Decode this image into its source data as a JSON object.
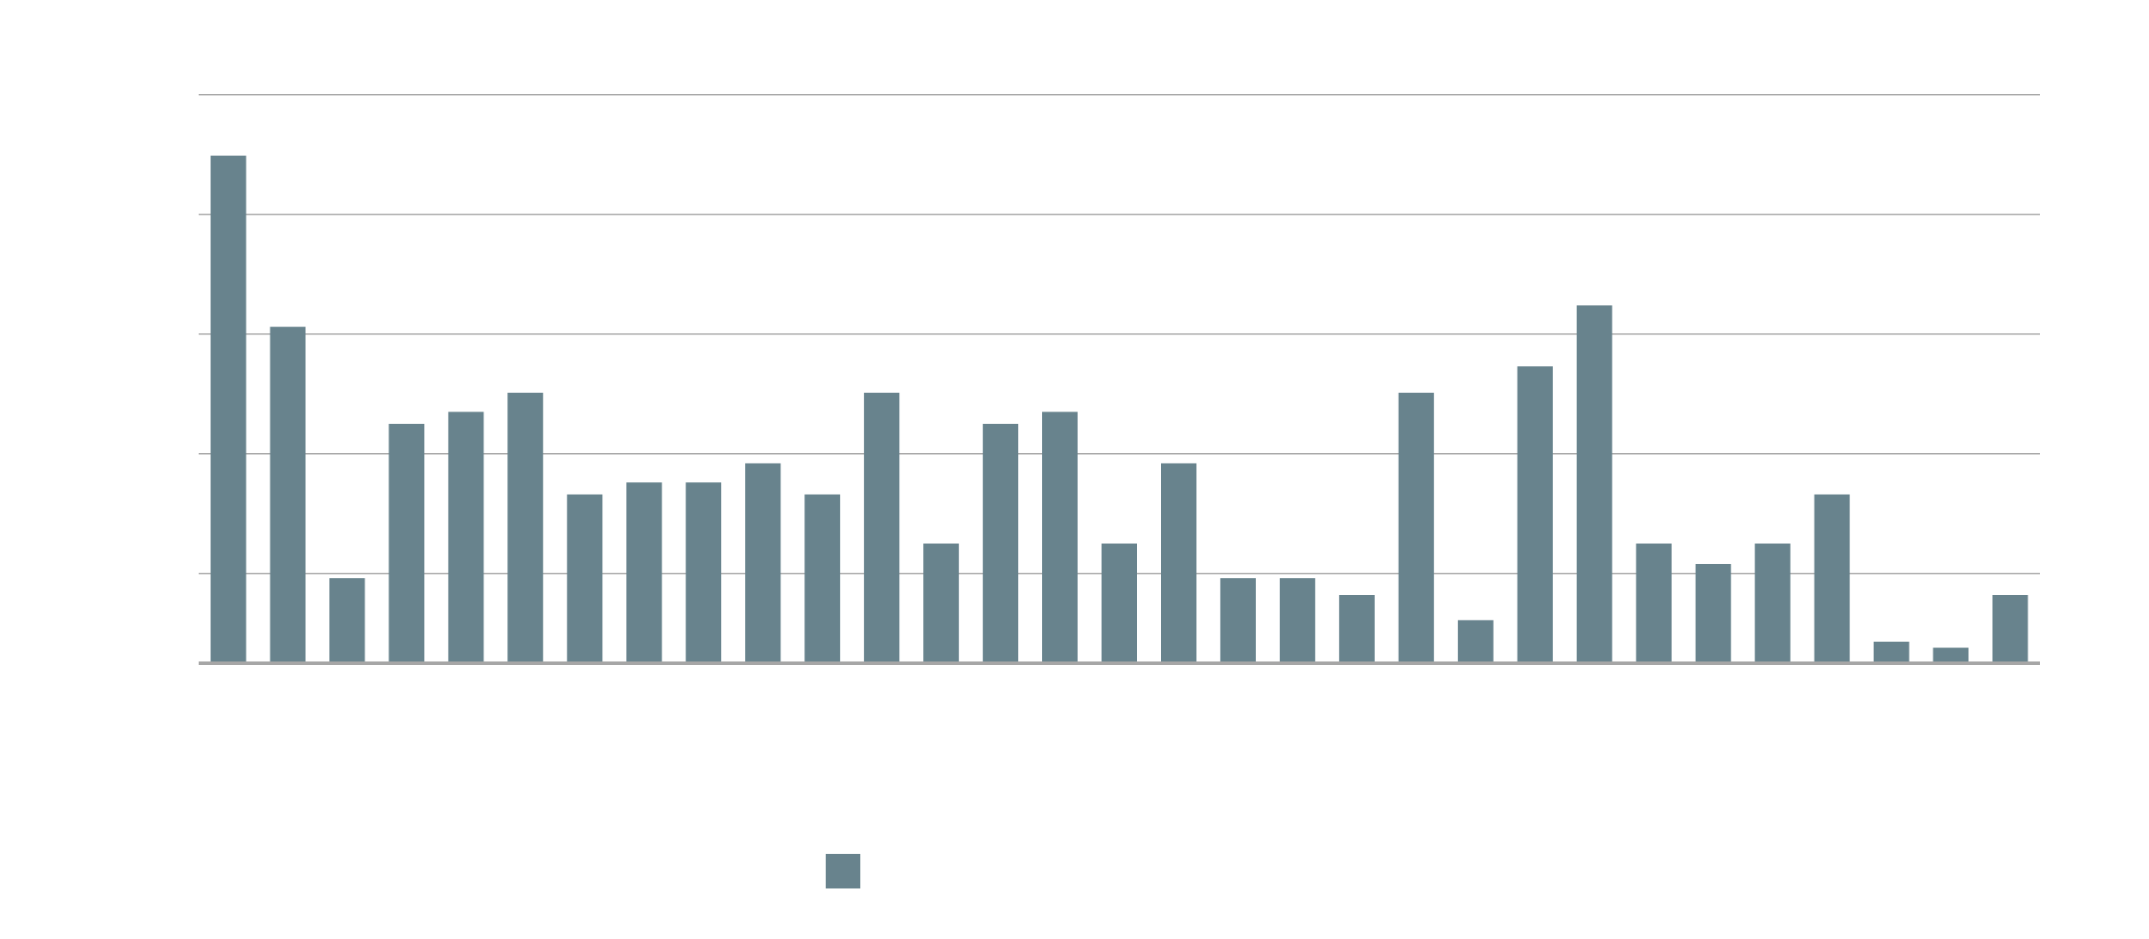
{
  "chart_data": {
    "type": "bar",
    "title": "",
    "xlabel": "",
    "ylabel": "",
    "ylim": [
      0,
      42.5
    ],
    "gridlines": [
      7.5,
      17.5,
      27.5,
      37.5,
      47.5
    ],
    "grid": true,
    "color": "#68838d",
    "legend": {
      "placement": "bottom-center",
      "label": ""
    },
    "values": [
      42.4,
      28.1,
      7.1,
      20.0,
      21.0,
      22.6,
      14.1,
      15.1,
      15.1,
      16.7,
      14.1,
      22.6,
      10.0,
      20.0,
      21.0,
      10.0,
      16.7,
      7.1,
      7.1,
      5.7,
      22.6,
      3.6,
      24.8,
      29.9,
      10.0,
      8.3,
      10.0,
      14.1,
      1.8,
      1.3,
      5.7
    ]
  }
}
